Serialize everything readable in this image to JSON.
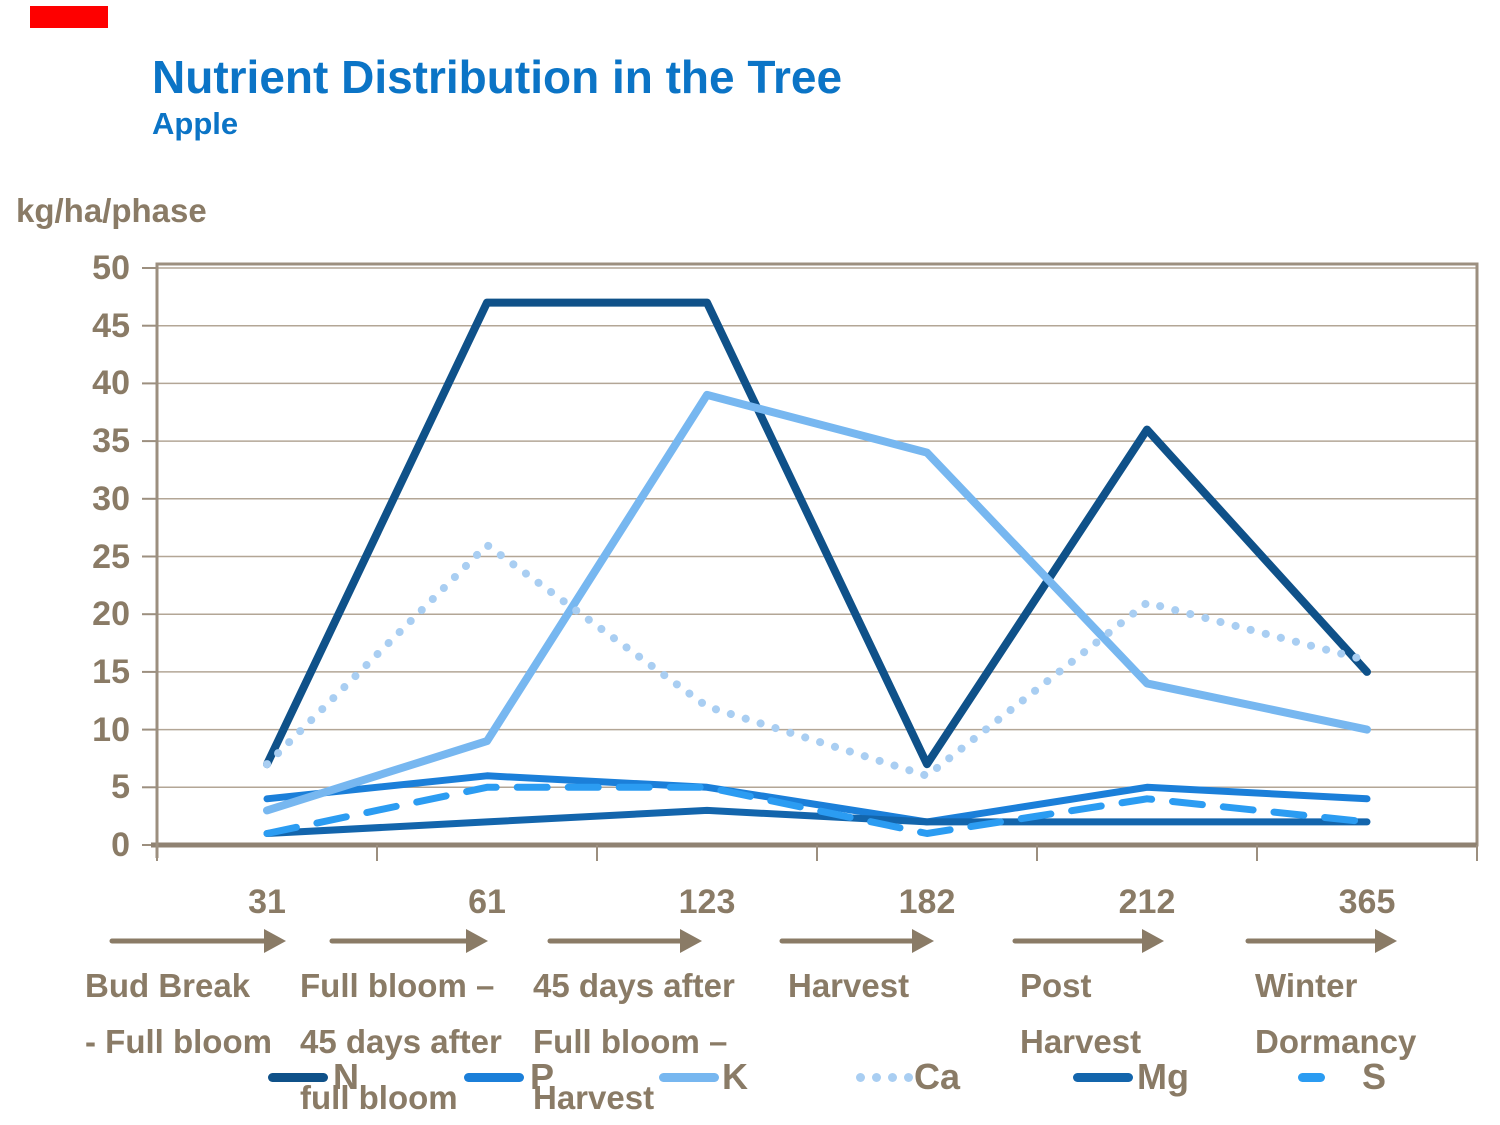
{
  "decor": {
    "red_bar_color": "#FE0000"
  },
  "header": {
    "title": "Nutrient Distribution in the Tree",
    "subtitle": "Apple",
    "title_color": "#0B74C6"
  },
  "chart_data": {
    "type": "line",
    "title": "Nutrient Distribution in the Tree",
    "subtitle": "Apple",
    "ylabel": "kg/ha/phase",
    "xlabel": "",
    "ylim": [
      0,
      50
    ],
    "ytick_step": 5,
    "grid": true,
    "legend_position": "bottom",
    "categories": [
      "31",
      "61",
      "123",
      "182",
      "212",
      "365"
    ],
    "phases": [
      {
        "day": "31",
        "lines": [
          "Bud Break",
          "- Full bloom"
        ]
      },
      {
        "day": "61",
        "lines": [
          "Full bloom –",
          "45 days after",
          "full bloom"
        ]
      },
      {
        "day": "123",
        "lines": [
          "45 days after",
          "Full bloom –",
          "Harvest"
        ]
      },
      {
        "day": "182",
        "lines": [
          "Harvest"
        ]
      },
      {
        "day": "212",
        "lines": [
          "Post",
          "Harvest"
        ]
      },
      {
        "day": "365",
        "lines": [
          "Winter",
          "Dormancy"
        ]
      }
    ],
    "series": [
      {
        "name": "N",
        "style": "solid",
        "color": "#0F5189",
        "values": [
          7,
          47,
          47,
          7,
          36,
          15
        ]
      },
      {
        "name": "P",
        "style": "solid",
        "color": "#1B7FD9",
        "values": [
          4,
          6,
          5,
          2,
          5,
          4
        ]
      },
      {
        "name": "K",
        "style": "solid",
        "color": "#77B7F0",
        "values": [
          3,
          9,
          39,
          34,
          14,
          10
        ]
      },
      {
        "name": "Ca",
        "style": "dotted",
        "color": "#A9CEF2",
        "values": [
          7,
          26,
          12,
          6,
          21,
          16
        ]
      },
      {
        "name": "Mg",
        "style": "solid",
        "color": "#1365AC",
        "values": [
          1,
          2,
          3,
          2,
          2,
          2
        ]
      },
      {
        "name": "S",
        "style": "dashed",
        "color": "#2B9CF2",
        "values": [
          1,
          5,
          5,
          1,
          4,
          2
        ]
      }
    ],
    "colors": {
      "axis": "#9C8F7F",
      "axis_strong": "#8F8272",
      "grid": "#B3A696",
      "label": "#8A7B66"
    }
  }
}
